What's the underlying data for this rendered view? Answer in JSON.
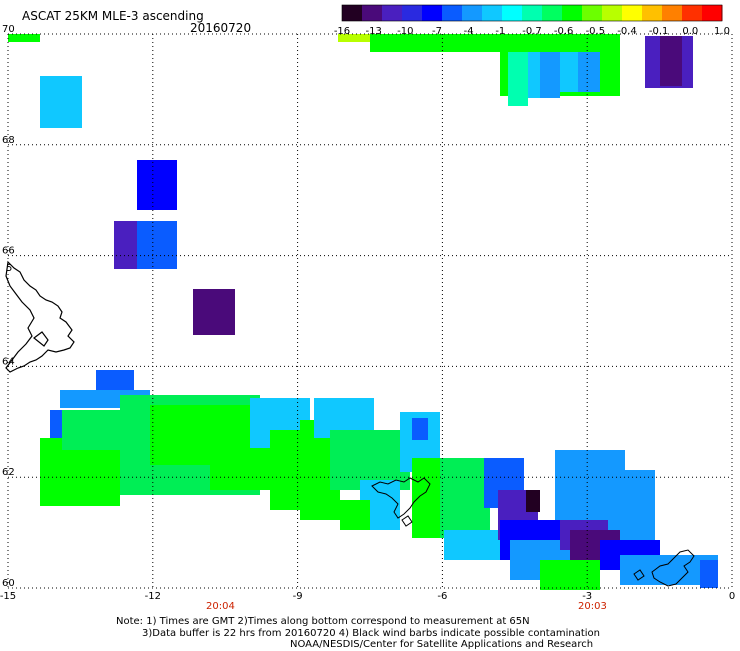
{
  "title": "ASCAT 25KM MLE-3 ascending",
  "date": "20160720",
  "colorbar": {
    "labels": [
      "-16",
      "-13",
      "-10",
      "-7",
      "-4",
      "-1",
      "-0.7",
      "-0.6",
      "-0.5",
      "-0.4",
      "-0.1",
      "0.0",
      "1.0"
    ],
    "colors": [
      "#220022",
      "#4a0a7a",
      "#4a1fbf",
      "#2a2ae0",
      "#0000ff",
      "#0a5cff",
      "#1499ff",
      "#10c8ff",
      "#00ffff",
      "#00ffb0",
      "#00ff60",
      "#00ff00",
      "#6cff00",
      "#b8ff00",
      "#ffff00",
      "#ffc000",
      "#ff8000",
      "#ff3000",
      "#ff0000"
    ]
  },
  "axes": {
    "lat_labels": [
      "70",
      "68",
      "66",
      "64",
      "62",
      "60"
    ],
    "lon_labels": [
      "-15",
      "-12",
      "-9",
      "-6",
      "-3",
      "0"
    ],
    "lat_range": [
      60,
      70
    ],
    "lon_range": [
      -15,
      0
    ],
    "extra_label": "5"
  },
  "time_labels": [
    "20:04",
    "20:03"
  ],
  "time_color": "#cc2200",
  "notes": {
    "line1": "Note: 1) Times are GMT 2)Times along bottom correspond to measurement at 65N",
    "line2": "3)Data buffer is 22 hrs from 20160720 4) Black wind barbs indicate possible contamination",
    "line3": "NOAA/NESDIS/Center for Satellite Applications and Research"
  },
  "palette": {
    "green": "#00ff00",
    "green2": "#00ee55",
    "teal": "#00ffb0",
    "cyan": "#10c8ff",
    "sky": "#1499ff",
    "blue": "#0a5cff",
    "deep": "#0000ff",
    "indigo": "#4a1fbf",
    "purple": "#4a0a7a",
    "black": "#220022",
    "yellow": "#b8ff00"
  }
}
